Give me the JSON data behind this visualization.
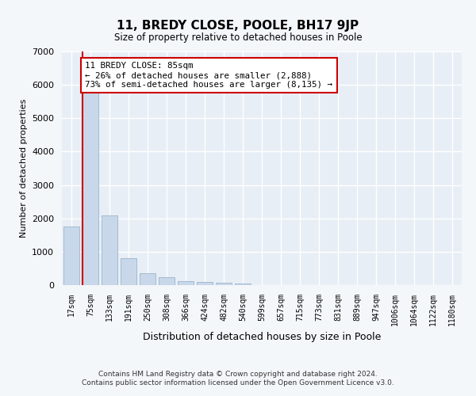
{
  "title": "11, BREDY CLOSE, POOLE, BH17 9JP",
  "subtitle": "Size of property relative to detached houses in Poole",
  "xlabel": "Distribution of detached houses by size in Poole",
  "ylabel": "Number of detached properties",
  "bar_color": "#c8d8ea",
  "bar_edge_color": "#9ab4cc",
  "background_color": "#e8eef5",
  "grid_color": "#ffffff",
  "fig_background_color": "#f4f7fa",
  "categories": [
    "17sqm",
    "75sqm",
    "133sqm",
    "191sqm",
    "250sqm",
    "308sqm",
    "366sqm",
    "424sqm",
    "482sqm",
    "540sqm",
    "599sqm",
    "657sqm",
    "715sqm",
    "773sqm",
    "831sqm",
    "889sqm",
    "947sqm",
    "1006sqm",
    "1064sqm",
    "1122sqm",
    "1180sqm"
  ],
  "values": [
    1750,
    5800,
    2100,
    800,
    350,
    230,
    130,
    100,
    70,
    50,
    0,
    0,
    0,
    0,
    0,
    0,
    0,
    0,
    0,
    0,
    0
  ],
  "ylim": [
    0,
    7000
  ],
  "yticks": [
    0,
    1000,
    2000,
    3000,
    4000,
    5000,
    6000,
    7000
  ],
  "red_line_bar_index": 1,
  "annotation_text": "11 BREDY CLOSE: 85sqm\n← 26% of detached houses are smaller (2,888)\n73% of semi-detached houses are larger (8,135) →",
  "annotation_box_color": "#ffffff",
  "annotation_box_edge_color": "#cc0000",
  "red_line_color": "#cc0000",
  "footer_line1": "Contains HM Land Registry data © Crown copyright and database right 2024.",
  "footer_line2": "Contains public sector information licensed under the Open Government Licence v3.0."
}
